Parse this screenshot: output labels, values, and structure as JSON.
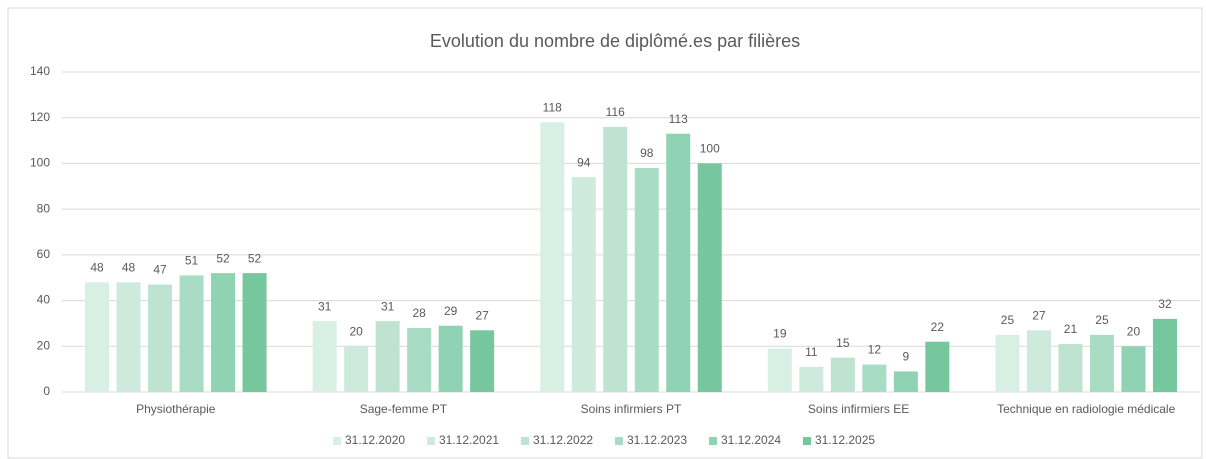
{
  "chart_data": {
    "type": "bar",
    "title": "Evolution du nombre de diplômé.es par filières",
    "categories": [
      "Physiothérapie",
      "Sage-femme PT",
      "Soins infirmiers PT",
      "Soins infirmiers EE",
      "Technique en radiologie médicale"
    ],
    "series": [
      {
        "name": "31.12.2020",
        "color": "#d8efe4",
        "values": [
          48,
          31,
          118,
          19,
          25
        ]
      },
      {
        "name": "31.12.2021",
        "color": "#cdeadc",
        "values": [
          48,
          20,
          94,
          11,
          27
        ]
      },
      {
        "name": "31.12.2022",
        "color": "#bee4d1",
        "values": [
          47,
          31,
          116,
          15,
          21
        ]
      },
      {
        "name": "31.12.2023",
        "color": "#a9dcc4",
        "values": [
          51,
          28,
          98,
          12,
          25
        ]
      },
      {
        "name": "31.12.2024",
        "color": "#90d2b4",
        "values": [
          52,
          29,
          113,
          9,
          20
        ]
      },
      {
        "name": "31.12.2025",
        "color": "#76c69e",
        "values": [
          52,
          27,
          100,
          22,
          32
        ]
      }
    ],
    "ylim": [
      0,
      140
    ],
    "yticks": [
      0,
      20,
      40,
      60,
      80,
      100,
      120,
      140
    ],
    "grid": true,
    "legend": "bottom"
  }
}
